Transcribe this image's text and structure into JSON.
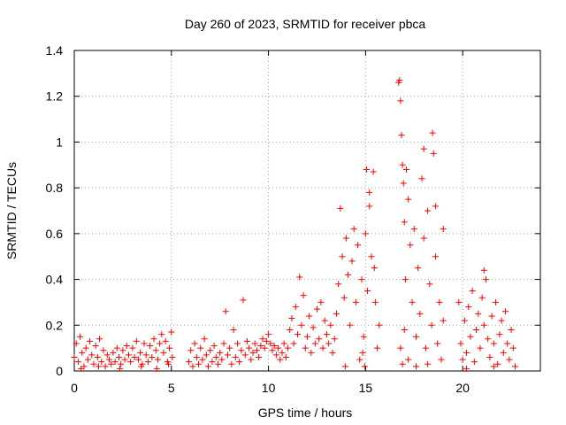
{
  "chart_data": {
    "type": "scatter",
    "title": "Day 260 of 2023, SRMTID for receiver pbca",
    "xlabel": "GPS time / hours",
    "ylabel": "SRMTID / TECUs",
    "xlim": [
      0,
      24
    ],
    "ylim": [
      0,
      1.4
    ],
    "xticks": [
      0,
      5,
      10,
      15,
      20
    ],
    "xtick_labels": [
      "0",
      "5",
      "10",
      "15",
      "20"
    ],
    "yticks": [
      0,
      0.2,
      0.4,
      0.6,
      0.8,
      1.0,
      1.2,
      1.4
    ],
    "ytick_labels": [
      "0",
      "0.2",
      "0.4",
      "0.6",
      "0.8",
      "1",
      "1.2",
      "1.4"
    ],
    "grid": true,
    "marker": "+",
    "color": "#ff0000",
    "series": [
      {
        "name": "SRMTID",
        "points": [
          [
            0.0,
            0.06
          ],
          [
            0.1,
            0.12
          ],
          [
            0.2,
            0.04
          ],
          [
            0.3,
            0.15
          ],
          [
            0.4,
            0.08
          ],
          [
            0.5,
            0.02
          ],
          [
            0.6,
            0.1
          ],
          [
            0.7,
            0.05
          ],
          [
            0.8,
            0.13
          ],
          [
            0.9,
            0.07
          ],
          [
            1.0,
            0.03
          ],
          [
            1.1,
            0.11
          ],
          [
            1.2,
            0.06
          ],
          [
            1.3,
            0.14
          ],
          [
            1.4,
            0.04
          ],
          [
            1.5,
            0.09
          ],
          [
            1.6,
            0.02
          ],
          [
            1.7,
            0.07
          ],
          [
            1.8,
            0.05
          ],
          [
            1.9,
            0.03
          ],
          [
            2.0,
            0.08
          ],
          [
            2.1,
            0.04
          ],
          [
            2.2,
            0.1
          ],
          [
            2.3,
            0.06
          ],
          [
            2.4,
            0.03
          ],
          [
            2.5,
            0.09
          ],
          [
            2.6,
            0.05
          ],
          [
            2.7,
            0.11
          ],
          [
            2.8,
            0.07
          ],
          [
            2.9,
            0.04
          ],
          [
            3.0,
            0.1
          ],
          [
            3.1,
            0.06
          ],
          [
            3.2,
            0.13
          ],
          [
            3.3,
            0.05
          ],
          [
            3.4,
            0.08
          ],
          [
            3.5,
            0.03
          ],
          [
            3.6,
            0.12
          ],
          [
            3.7,
            0.07
          ],
          [
            3.8,
            0.04
          ],
          [
            3.9,
            0.11
          ],
          [
            4.0,
            0.06
          ],
          [
            4.1,
            0.14
          ],
          [
            4.2,
            0.09
          ],
          [
            4.3,
            0.05
          ],
          [
            4.4,
            0.12
          ],
          [
            4.5,
            0.16
          ],
          [
            4.6,
            0.08
          ],
          [
            4.7,
            0.13
          ],
          [
            4.8,
            0.04
          ],
          [
            4.9,
            0.1
          ],
          [
            5.0,
            0.17
          ],
          [
            5.05,
            0.06
          ],
          [
            0.35,
            0.01
          ],
          [
            1.25,
            0.02
          ],
          [
            2.35,
            0.01
          ],
          [
            3.45,
            0.02
          ],
          [
            4.25,
            0.01
          ],
          [
            4.85,
            0.03
          ],
          [
            5.9,
            0.04
          ],
          [
            6.0,
            0.09
          ],
          [
            6.1,
            0.02
          ],
          [
            6.2,
            0.12
          ],
          [
            6.3,
            0.06
          ],
          [
            6.4,
            0.03
          ],
          [
            6.5,
            0.1
          ],
          [
            6.6,
            0.05
          ],
          [
            6.7,
            0.14
          ],
          [
            6.8,
            0.07
          ],
          [
            6.9,
            0.02
          ],
          [
            7.0,
            0.09
          ],
          [
            7.1,
            0.04
          ],
          [
            7.2,
            0.11
          ],
          [
            7.3,
            0.06
          ],
          [
            7.4,
            0.03
          ],
          [
            7.5,
            0.08
          ],
          [
            7.6,
            0.05
          ],
          [
            7.7,
            0.12
          ],
          [
            7.8,
            0.26
          ],
          [
            7.9,
            0.07
          ],
          [
            8.0,
            0.1
          ],
          [
            8.1,
            0.03
          ],
          [
            8.2,
            0.18
          ],
          [
            8.3,
            0.06
          ],
          [
            8.4,
            0.12
          ],
          [
            8.5,
            0.04
          ],
          [
            8.6,
            0.09
          ],
          [
            8.7,
            0.31
          ],
          [
            8.8,
            0.07
          ],
          [
            8.9,
            0.13
          ],
          [
            9.0,
            0.1
          ],
          [
            9.1,
            0.05
          ],
          [
            9.2,
            0.08
          ],
          [
            9.3,
            0.12
          ],
          [
            9.4,
            0.09
          ],
          [
            9.5,
            0.06
          ],
          [
            9.6,
            0.11
          ],
          [
            9.7,
            0.14
          ],
          [
            9.8,
            0.1
          ],
          [
            9.9,
            0.13
          ],
          [
            10.0,
            0.16
          ],
          [
            10.1,
            0.12
          ],
          [
            10.2,
            0.09
          ],
          [
            10.3,
            0.11
          ],
          [
            10.4,
            0.07
          ],
          [
            10.5,
            0.1
          ],
          [
            10.6,
            0.05
          ],
          [
            10.7,
            0.08
          ],
          [
            10.8,
            0.12
          ],
          [
            10.9,
            0.06
          ],
          [
            11.0,
            0.1
          ],
          [
            11.1,
            0.18
          ],
          [
            11.2,
            0.23
          ],
          [
            11.3,
            0.12
          ],
          [
            11.4,
            0.28
          ],
          [
            11.5,
            0.16
          ],
          [
            11.6,
            0.41
          ],
          [
            11.7,
            0.2
          ],
          [
            11.8,
            0.33
          ],
          [
            11.9,
            0.1
          ],
          [
            12.0,
            0.15
          ],
          [
            12.1,
            0.24
          ],
          [
            12.2,
            0.08
          ],
          [
            12.3,
            0.19
          ],
          [
            12.4,
            0.12
          ],
          [
            12.5,
            0.27
          ],
          [
            12.6,
            0.14
          ],
          [
            12.7,
            0.3
          ],
          [
            12.8,
            0.1
          ],
          [
            12.9,
            0.22
          ],
          [
            13.0,
            0.16
          ],
          [
            13.1,
            0.12
          ],
          [
            13.2,
            0.2
          ],
          [
            13.3,
            0.08
          ],
          [
            13.4,
            0.14
          ],
          [
            13.5,
            0.25
          ],
          [
            13.6,
            0.38
          ],
          [
            13.7,
            0.71
          ],
          [
            13.8,
            0.5
          ],
          [
            13.9,
            0.32
          ],
          [
            14.0,
            0.58
          ],
          [
            14.1,
            0.42
          ],
          [
            14.2,
            0.2
          ],
          [
            14.3,
            0.48
          ],
          [
            14.4,
            0.62
          ],
          [
            14.5,
            0.3
          ],
          [
            14.6,
            0.55
          ],
          [
            14.7,
            0.05
          ],
          [
            14.8,
            0.4
          ],
          [
            14.9,
            0.15
          ],
          [
            15.0,
            0.6
          ],
          [
            15.05,
            0.88
          ],
          [
            15.1,
            0.35
          ],
          [
            15.2,
            0.72
          ],
          [
            15.3,
            0.5
          ],
          [
            15.4,
            0.87
          ],
          [
            15.5,
            0.3
          ],
          [
            15.6,
            0.1
          ],
          [
            15.7,
            0.2
          ],
          [
            15.2,
            0.78
          ],
          [
            14.85,
            0.08
          ],
          [
            14.95,
            0.02
          ],
          [
            15.45,
            0.45
          ],
          [
            13.95,
            0.02
          ],
          [
            16.7,
            1.26
          ],
          [
            16.75,
            1.27
          ],
          [
            16.8,
            1.18
          ],
          [
            16.85,
            1.03
          ],
          [
            16.9,
            0.9
          ],
          [
            16.95,
            0.82
          ],
          [
            17.0,
            0.65
          ],
          [
            17.05,
            0.4
          ],
          [
            17.1,
            0.88
          ],
          [
            17.2,
            0.75
          ],
          [
            17.3,
            0.55
          ],
          [
            17.4,
            0.3
          ],
          [
            17.5,
            0.62
          ],
          [
            17.6,
            0.15
          ],
          [
            17.7,
            0.45
          ],
          [
            17.8,
            0.25
          ],
          [
            17.9,
            0.84
          ],
          [
            18.0,
            0.58
          ],
          [
            18.1,
            0.1
          ],
          [
            18.2,
            0.7
          ],
          [
            18.3,
            0.38
          ],
          [
            18.4,
            0.2
          ],
          [
            18.45,
            1.04
          ],
          [
            18.5,
            0.95
          ],
          [
            18.6,
            0.5
          ],
          [
            18.7,
            0.12
          ],
          [
            18.8,
            0.3
          ],
          [
            18.9,
            0.05
          ],
          [
            19.0,
            0.22
          ],
          [
            16.8,
            0.1
          ],
          [
            16.9,
            0.03
          ],
          [
            17.0,
            0.18
          ],
          [
            17.2,
            0.05
          ],
          [
            17.6,
            0.02
          ],
          [
            18.0,
            0.97
          ],
          [
            18.2,
            0.03
          ],
          [
            18.6,
            0.72
          ],
          [
            19.0,
            0.62
          ],
          [
            19.8,
            0.3
          ],
          [
            19.9,
            0.12
          ],
          [
            20.0,
            0.05
          ],
          [
            20.1,
            0.22
          ],
          [
            20.2,
            0.08
          ],
          [
            20.3,
            0.28
          ],
          [
            20.4,
            0.15
          ],
          [
            20.5,
            0.35
          ],
          [
            20.6,
            0.04
          ],
          [
            20.7,
            0.18
          ],
          [
            20.8,
            0.25
          ],
          [
            20.9,
            0.1
          ],
          [
            21.0,
            0.32
          ],
          [
            21.1,
            0.2
          ],
          [
            21.2,
            0.4
          ],
          [
            21.3,
            0.14
          ],
          [
            21.4,
            0.06
          ],
          [
            21.5,
            0.24
          ],
          [
            21.6,
            0.12
          ],
          [
            21.7,
            0.3
          ],
          [
            21.8,
            0.03
          ],
          [
            21.9,
            0.16
          ],
          [
            22.0,
            0.22
          ],
          [
            22.1,
            0.08
          ],
          [
            22.2,
            0.26
          ],
          [
            22.3,
            0.12
          ],
          [
            22.4,
            0.05
          ],
          [
            22.5,
            0.18
          ],
          [
            22.6,
            0.1
          ],
          [
            22.7,
            0.02
          ],
          [
            21.1,
            0.44
          ],
          [
            20.2,
            0.01
          ],
          [
            21.6,
            0.02
          ]
        ]
      }
    ]
  }
}
